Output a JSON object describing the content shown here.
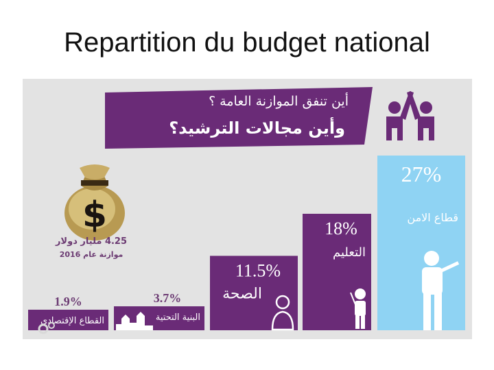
{
  "slide": {
    "title": "Repartition du budget national"
  },
  "banner": {
    "line1": "أين تنفق الموازنة العامة ؟",
    "line2": "وأين مجالات الترشيد؟"
  },
  "budget": {
    "amount": "4.25 مليار دولار",
    "year": "موازنة عام 2016"
  },
  "colors": {
    "purple": "#6a2b77",
    "light_blue": "#8fd3f3",
    "panel_bg": "#e3e3e3",
    "text_purple": "#6b3a72"
  },
  "chart_data": {
    "type": "bar",
    "title": "Repartition du budget national",
    "categories": [
      "القطاع الإقتصادي",
      "البنية التحتية",
      "الصحة",
      "التعليم",
      "قطاع الامن"
    ],
    "value_labels": [
      "1.9%",
      "3.7%",
      "11.5%",
      "18%",
      "27%"
    ],
    "values": [
      1.9,
      3.7,
      11.5,
      18,
      27
    ],
    "units": "%",
    "grid": false,
    "legend": "none",
    "icons": [
      "gears-icon",
      "city-skyline-icon",
      "doctor-icon",
      "teacher-icon",
      "soldier-icon"
    ]
  }
}
